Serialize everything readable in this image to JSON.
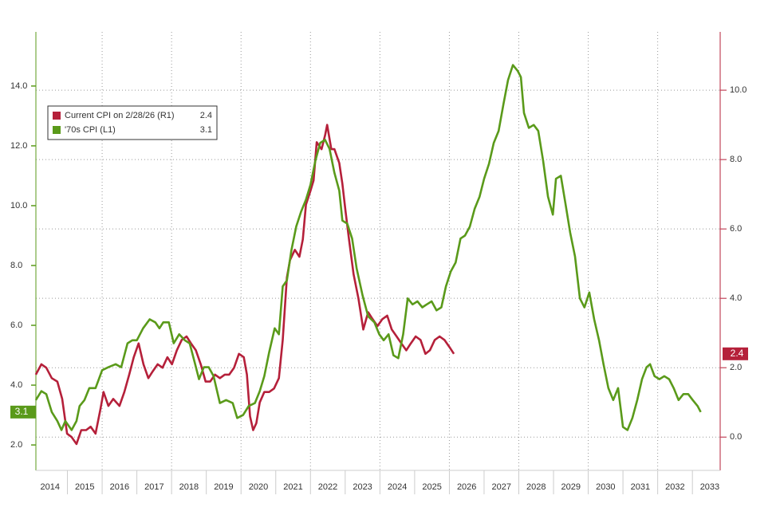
{
  "chart_data": {
    "type": "line",
    "xlim": [
      2014,
      2033.8
    ],
    "xticks": [
      2014,
      2015,
      2016,
      2017,
      2018,
      2019,
      2020,
      2021,
      2022,
      2023,
      2024,
      2025,
      2026,
      2027,
      2028,
      2029,
      2030,
      2031,
      2032,
      2033
    ],
    "ylim": [
      1.15,
      15.81
    ],
    "yticks": [
      {
        "value": 2,
        "label": "2.0"
      },
      {
        "value": 4,
        "label": "4.0"
      },
      {
        "value": 6,
        "label": "6.0"
      },
      {
        "value": 8,
        "label": "8.0"
      },
      {
        "value": 10,
        "label": "10.0"
      },
      {
        "value": 12,
        "label": "12.0"
      },
      {
        "value": 14,
        "label": "14.0"
      }
    ],
    "y2lim": [
      -0.96,
      11.68
    ],
    "y2ticks": [
      {
        "value": 0,
        "label": "0.0"
      },
      {
        "value": 2,
        "label": "2.0"
      },
      {
        "value": 4,
        "label": "4.0"
      },
      {
        "value": 6,
        "label": "6.0"
      },
      {
        "value": 8,
        "label": "8.0"
      },
      {
        "value": 10,
        "label": "10.0"
      }
    ],
    "grid": true,
    "legend": "upper left",
    "series": [
      {
        "name": "Current CPI on 2/28/26 (R1)",
        "latest": "2.4",
        "color": "#b5203a",
        "axis": "y2",
        "x": [
          2014.09,
          2014.25,
          2014.39,
          2014.55,
          2014.71,
          2014.85,
          2014.99,
          2015.12,
          2015.26,
          2015.4,
          2015.54,
          2015.67,
          2015.81,
          2015.95,
          2016.04,
          2016.18,
          2016.32,
          2016.5,
          2016.64,
          2016.78,
          2016.91,
          2017.05,
          2017.19,
          2017.33,
          2017.46,
          2017.6,
          2017.74,
          2017.88,
          2018.01,
          2018.15,
          2018.29,
          2018.43,
          2018.56,
          2018.7,
          2018.84,
          2018.98,
          2019.11,
          2019.25,
          2019.39,
          2019.53,
          2019.66,
          2019.8,
          2019.94,
          2020.08,
          2020.17,
          2020.26,
          2020.35,
          2020.44,
          2020.54,
          2020.67,
          2020.81,
          2020.95,
          2021.09,
          2021.2,
          2021.32,
          2021.41,
          2021.55,
          2021.68,
          2021.78,
          2021.87,
          2022.0,
          2022.09,
          2022.18,
          2022.32,
          2022.42,
          2022.48,
          2022.6,
          2022.69,
          2022.83,
          2022.92,
          2023.01,
          2023.11,
          2023.24,
          2023.38,
          2023.52,
          2023.66,
          2023.79,
          2023.93,
          2024.07,
          2024.21,
          2024.34,
          2024.48,
          2024.62,
          2024.76,
          2024.89,
          2025.03,
          2025.17,
          2025.31,
          2025.44,
          2025.58,
          2025.72,
          2025.86,
          2026.0,
          2026.13
        ],
        "values": [
          1.8,
          2.1,
          2.0,
          1.7,
          1.6,
          1.1,
          0.1,
          0.0,
          -0.2,
          0.2,
          0.2,
          0.3,
          0.1,
          0.8,
          1.3,
          0.9,
          1.1,
          0.9,
          1.3,
          1.8,
          2.3,
          2.7,
          2.1,
          1.7,
          1.9,
          2.1,
          2.0,
          2.3,
          2.1,
          2.5,
          2.8,
          2.9,
          2.7,
          2.5,
          2.1,
          1.6,
          1.6,
          1.8,
          1.7,
          1.8,
          1.8,
          2.0,
          2.4,
          2.3,
          1.8,
          0.6,
          0.2,
          0.4,
          1.0,
          1.3,
          1.3,
          1.4,
          1.7,
          2.8,
          4.6,
          5.1,
          5.4,
          5.2,
          5.7,
          6.7,
          7.1,
          7.4,
          8.5,
          8.3,
          8.7,
          9.0,
          8.3,
          8.3,
          7.9,
          7.3,
          6.5,
          5.7,
          4.7,
          4.0,
          3.1,
          3.6,
          3.4,
          3.2,
          3.4,
          3.5,
          3.1,
          2.9,
          2.7,
          2.5,
          2.7,
          2.9,
          2.8,
          2.4,
          2.5,
          2.8,
          2.9,
          2.8,
          2.6,
          2.4
        ]
      },
      {
        "name": "'70s CPI (L1)",
        "latest": "3.1",
        "color": "#5a9a1a",
        "x": [
          2014.09,
          2014.25,
          2014.39,
          2014.55,
          2014.71,
          2014.83,
          2014.94,
          2015.12,
          2015.26,
          2015.35,
          2015.49,
          2015.63,
          2015.81,
          2016.0,
          2016.18,
          2016.39,
          2016.55,
          2016.73,
          2016.87,
          2017.0,
          2017.18,
          2017.37,
          2017.53,
          2017.65,
          2017.76,
          2017.92,
          2018.06,
          2018.22,
          2018.38,
          2018.52,
          2018.68,
          2018.79,
          2018.93,
          2019.07,
          2019.21,
          2019.39,
          2019.57,
          2019.76,
          2019.89,
          2020.06,
          2020.22,
          2020.4,
          2020.54,
          2020.67,
          2020.81,
          2020.97,
          2021.09,
          2021.2,
          2021.32,
          2021.45,
          2021.59,
          2021.73,
          2021.87,
          2022.0,
          2022.14,
          2022.28,
          2022.42,
          2022.55,
          2022.69,
          2022.83,
          2022.92,
          2023.06,
          2023.2,
          2023.33,
          2023.5,
          2023.66,
          2023.84,
          2023.98,
          2024.11,
          2024.25,
          2024.39,
          2024.53,
          2024.67,
          2024.8,
          2024.94,
          2025.08,
          2025.22,
          2025.35,
          2025.49,
          2025.63,
          2025.77,
          2025.9,
          2026.04,
          2026.18,
          2026.32,
          2026.45,
          2026.59,
          2026.73,
          2026.87,
          2027.0,
          2027.14,
          2027.28,
          2027.42,
          2027.56,
          2027.69,
          2027.83,
          2027.97,
          2028.06,
          2028.15,
          2028.29,
          2028.43,
          2028.56,
          2028.7,
          2028.84,
          2028.98,
          2029.07,
          2029.21,
          2029.34,
          2029.48,
          2029.62,
          2029.76,
          2029.89,
          2030.03,
          2030.17,
          2030.31,
          2030.44,
          2030.58,
          2030.72,
          2030.86,
          2031.0,
          2031.13,
          2031.27,
          2031.41,
          2031.55,
          2031.68,
          2031.78,
          2031.91,
          2032.05,
          2032.19,
          2032.33,
          2032.46,
          2032.6,
          2032.74,
          2032.88,
          2033.01,
          2033.15,
          2033.24
        ],
        "values": [
          3.5,
          3.8,
          3.7,
          3.1,
          2.8,
          2.5,
          2.8,
          2.5,
          2.8,
          3.3,
          3.5,
          3.9,
          3.9,
          4.5,
          4.6,
          4.7,
          4.6,
          5.4,
          5.5,
          5.5,
          5.9,
          6.2,
          6.1,
          5.9,
          6.1,
          6.1,
          5.4,
          5.7,
          5.5,
          5.4,
          4.7,
          4.2,
          4.6,
          4.6,
          4.3,
          3.4,
          3.5,
          3.4,
          2.9,
          3.0,
          3.3,
          3.4,
          3.8,
          4.3,
          5.1,
          5.9,
          5.7,
          7.3,
          7.5,
          8.5,
          9.3,
          9.8,
          10.2,
          10.7,
          11.5,
          12.1,
          12.2,
          11.9,
          11.1,
          10.5,
          9.5,
          9.4,
          8.9,
          7.9,
          7.0,
          6.3,
          6.1,
          5.7,
          5.5,
          5.7,
          5.0,
          4.9,
          5.7,
          6.9,
          6.7,
          6.8,
          6.6,
          6.7,
          6.8,
          6.5,
          6.6,
          7.3,
          7.8,
          8.1,
          8.9,
          9.0,
          9.3,
          9.9,
          10.3,
          10.9,
          11.4,
          12.1,
          12.5,
          13.4,
          14.2,
          14.7,
          14.5,
          14.3,
          13.1,
          12.6,
          12.7,
          12.5,
          11.5,
          10.3,
          9.7,
          10.9,
          11.0,
          10.1,
          9.1,
          8.3,
          6.9,
          6.6,
          7.1,
          6.2,
          5.5,
          4.7,
          3.9,
          3.5,
          3.9,
          2.6,
          2.5,
          2.9,
          3.5,
          4.2,
          4.6,
          4.7,
          4.3,
          4.2,
          4.3,
          4.2,
          3.9,
          3.5,
          3.7,
          3.7,
          3.5,
          3.3,
          3.1
        ]
      }
    ]
  }
}
